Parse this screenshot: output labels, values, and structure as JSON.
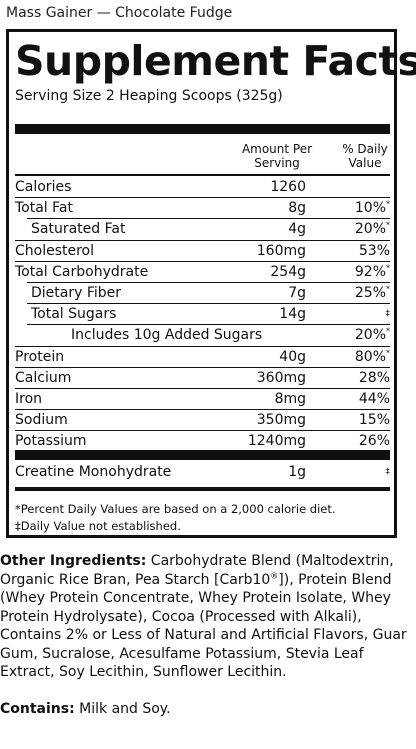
{
  "product_name": "Mass Gainer — Chocolate Fudge",
  "title": "Supplement Facts",
  "serving_size": "Serving Size 2 Heaping Scoops (325g)",
  "header": {
    "amount": "Amount Per Serving",
    "daily_value": "% Daily Value"
  },
  "nutrients": [
    {
      "name": "Calories",
      "amount": "1260",
      "dv": ""
    },
    {
      "name": "Total Fat",
      "amount": "8g",
      "dv": "10%*"
    },
    {
      "name": "Saturated Fat",
      "amount": "4g",
      "dv": "20%*"
    },
    {
      "name": "Cholesterol",
      "amount": "160mg",
      "dv": "53%"
    },
    {
      "name": "Total Carbohydrate",
      "amount": "254g",
      "dv": "92%*"
    },
    {
      "name": "Dietary Fiber",
      "amount": "7g",
      "dv": "25%*"
    },
    {
      "name": "Total Sugars",
      "amount": "14g",
      "dv": "‡"
    },
    {
      "name": "Includes 10g Added Sugars",
      "amount": "",
      "dv": "20%*"
    },
    {
      "name": "Protein",
      "amount": "40g",
      "dv": "80%*"
    },
    {
      "name": "Calcium",
      "amount": "360mg",
      "dv": "28%"
    },
    {
      "name": "Iron",
      "amount": "8mg",
      "dv": "44%"
    },
    {
      "name": "Sodium",
      "amount": "350mg",
      "dv": "15%"
    },
    {
      "name": "Potassium",
      "amount": "1240mg",
      "dv": "26%"
    }
  ],
  "other": {
    "name": "Creatine Monohydrate",
    "amount": "1g",
    "dv": "‡"
  },
  "footnotes": [
    "*Percent Daily Values are based on a 2,000 calorie diet.",
    "‡Daily Value not established."
  ],
  "ingredients": {
    "label": "Other Ingredients:",
    "text_1": " Carbohydrate Blend (Maltodextrin, Organic Rice Bran, Pea Starch [Carb10",
    "reg": "®",
    "text_2": "]), Protein Blend (Whey Protein Concentrate, Whey Protein Isolate, Whey Protein Hydrolysate), Cocoa (Processed with Alkali), Contains 2% or Less of Natural and Artificial Flavors, Guar Gum, Sucralose, Acesulfame Potassium, Stevia Leaf Extract, Soy Lecithin, Sunflower Lecithin."
  },
  "contains": {
    "label": "Contains:",
    "text": " Milk and Soy."
  }
}
